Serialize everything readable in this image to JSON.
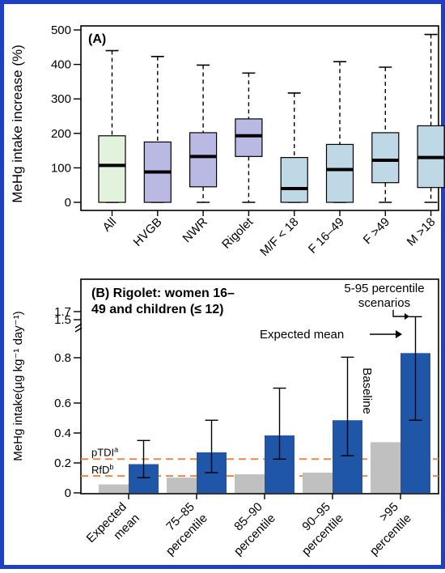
{
  "frame_color": "#1f3fc4",
  "chart_data": [
    {
      "type": "box",
      "panel_label": "(A)",
      "ylabel": "MeHg intake increase (%)",
      "ylim": [
        0,
        500
      ],
      "yticks": [
        0,
        100,
        200,
        300,
        400,
        500
      ],
      "categories": [
        "All",
        "HVGB",
        "NWR",
        "Rigolet",
        "M/F < 18",
        "F 16–49",
        "F >49",
        "M >18"
      ],
      "boxes": [
        {
          "min": 0,
          "q1": 0,
          "median": 107,
          "q3": 193,
          "max": 440,
          "color": "#e3f2dc"
        },
        {
          "min": 0,
          "q1": 0,
          "median": 88,
          "q3": 175,
          "max": 423,
          "color": "#b9b9e3"
        },
        {
          "min": 0,
          "q1": 45,
          "median": 133,
          "q3": 202,
          "max": 398,
          "color": "#b9b9e3"
        },
        {
          "min": 0,
          "q1": 133,
          "median": 193,
          "q3": 242,
          "max": 375,
          "color": "#b9b9e3"
        },
        {
          "min": 0,
          "q1": 0,
          "median": 40,
          "q3": 130,
          "max": 317,
          "color": "#bfd8e5"
        },
        {
          "min": 0,
          "q1": 0,
          "median": 95,
          "q3": 168,
          "max": 408,
          "color": "#bfd8e5"
        },
        {
          "min": 0,
          "q1": 57,
          "median": 122,
          "q3": 202,
          "max": 392,
          "color": "#bfd8e5"
        },
        {
          "min": 0,
          "q1": 43,
          "median": 130,
          "q3": 222,
          "max": 487,
          "color": "#bfd8e5"
        }
      ]
    },
    {
      "type": "bar",
      "panel_label": "(B) Rigolet: women 16–",
      "panel_label_line2": "49 and children (≤ 12)",
      "ylabel": "MeHg intake(µg kg⁻¹ day⁻¹)",
      "yticks": [
        0,
        0.2,
        0.4,
        0.6,
        0.8,
        1.5,
        1.7
      ],
      "axis_break": "between 0.8 and 1.5",
      "categories": [
        "Expected mean",
        "75–85 percentile",
        "85–90 percentile",
        "90–95 percentile",
        ">95 percentile"
      ],
      "series": [
        {
          "values": [
            0.05,
            0.09,
            0.11,
            0.12,
            0.3
          ],
          "color": "#c0c0c0"
        },
        {
          "values": [
            0.17,
            0.24,
            0.34,
            0.43,
            0.89
          ],
          "color": "#1f56a8",
          "error_low": [
            0.09,
            0.12,
            0.2,
            0.22,
            0.43
          ],
          "error_high": [
            0.31,
            0.43,
            0.62,
            0.81,
            1.6
          ]
        }
      ],
      "reference_lines": [
        {
          "label": "pTDI",
          "superscript": "a",
          "value": 0.2,
          "color": "#e8884a"
        },
        {
          "label": "RfD",
          "superscript": "b",
          "value": 0.1,
          "color": "#e8884a"
        }
      ],
      "annotations": {
        "scenarios_line1": "5-95 percentile",
        "scenarios_line2": "scenarios",
        "expected_mean": "Expected mean",
        "baseline": "Baseline"
      }
    }
  ]
}
